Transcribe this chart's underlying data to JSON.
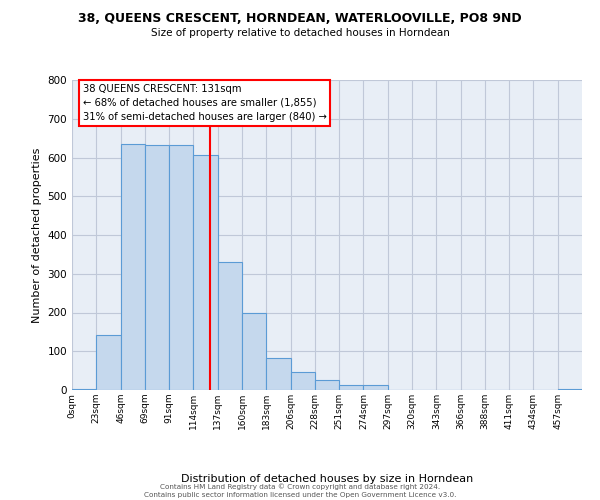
{
  "title": "38, QUEENS CRESCENT, HORNDEAN, WATERLOOVILLE, PO8 9ND",
  "subtitle": "Size of property relative to detached houses in Horndean",
  "xlabel": "Distribution of detached houses by size in Horndean",
  "ylabel": "Number of detached properties",
  "bin_labels": [
    "0sqm",
    "23sqm",
    "46sqm",
    "69sqm",
    "91sqm",
    "114sqm",
    "137sqm",
    "160sqm",
    "183sqm",
    "206sqm",
    "228sqm",
    "251sqm",
    "274sqm",
    "297sqm",
    "320sqm",
    "343sqm",
    "366sqm",
    "388sqm",
    "411sqm",
    "434sqm",
    "457sqm"
  ],
  "bar_heights": [
    2,
    143,
    635,
    632,
    632,
    607,
    330,
    198,
    83,
    46,
    27,
    12,
    12,
    0,
    0,
    0,
    0,
    0,
    0,
    0,
    2
  ],
  "bar_color": "#c5d8ed",
  "bar_edge_color": "#5b9bd5",
  "grid_color": "#c0c8d8",
  "background_color": "#e8eef6",
  "vline_color": "red",
  "annotation_text": "38 QUEENS CRESCENT: 131sqm\n← 68% of detached houses are smaller (1,855)\n31% of semi-detached houses are larger (840) →",
  "annotation_box_color": "white",
  "annotation_box_edge": "red",
  "ylim": [
    0,
    800
  ],
  "yticks": [
    0,
    100,
    200,
    300,
    400,
    500,
    600,
    700,
    800
  ],
  "footer_text": "Contains HM Land Registry data © Crown copyright and database right 2024.\nContains public sector information licensed under the Open Government Licence v3.0.",
  "bin_width": 23,
  "vline_x": 131
}
